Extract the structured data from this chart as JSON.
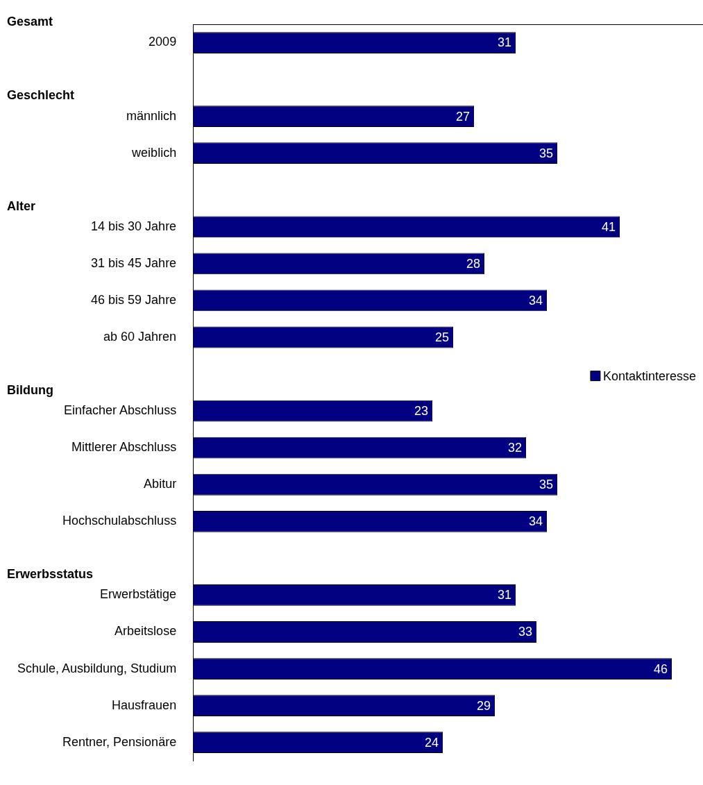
{
  "chart_data": {
    "type": "bar",
    "orientation": "horizontal",
    "categories": [
      "2009",
      null,
      "männlich",
      "weiblich",
      null,
      "14 bis 30 Jahre",
      "31 bis 45 Jahre",
      "46 bis 59 Jahre",
      "ab 60 Jahren",
      null,
      "Einfacher Abschluss",
      "Mittlerer Abschluss",
      "Abitur",
      "Hochschulabschluss",
      null,
      "Erwerbstätige",
      "Arbeitslose",
      "Schule, Ausbildung, Studium",
      "Hausfrauen",
      "Rentner, Pensionäre"
    ],
    "series": [
      {
        "name": "Kontaktinteresse",
        "color": "#000080",
        "values": [
          31,
          null,
          27,
          35,
          null,
          41,
          28,
          34,
          25,
          null,
          23,
          32,
          35,
          34,
          null,
          31,
          33,
          46,
          29,
          24
        ]
      }
    ],
    "xlim": [
      0,
      49
    ],
    "annotations": [
      "Gesamt",
      "Geschlecht",
      "Alter",
      "Bildung",
      "Erwerbsstatus"
    ],
    "data_labels": true,
    "legend": "right",
    "tick_labels": "y"
  }
}
